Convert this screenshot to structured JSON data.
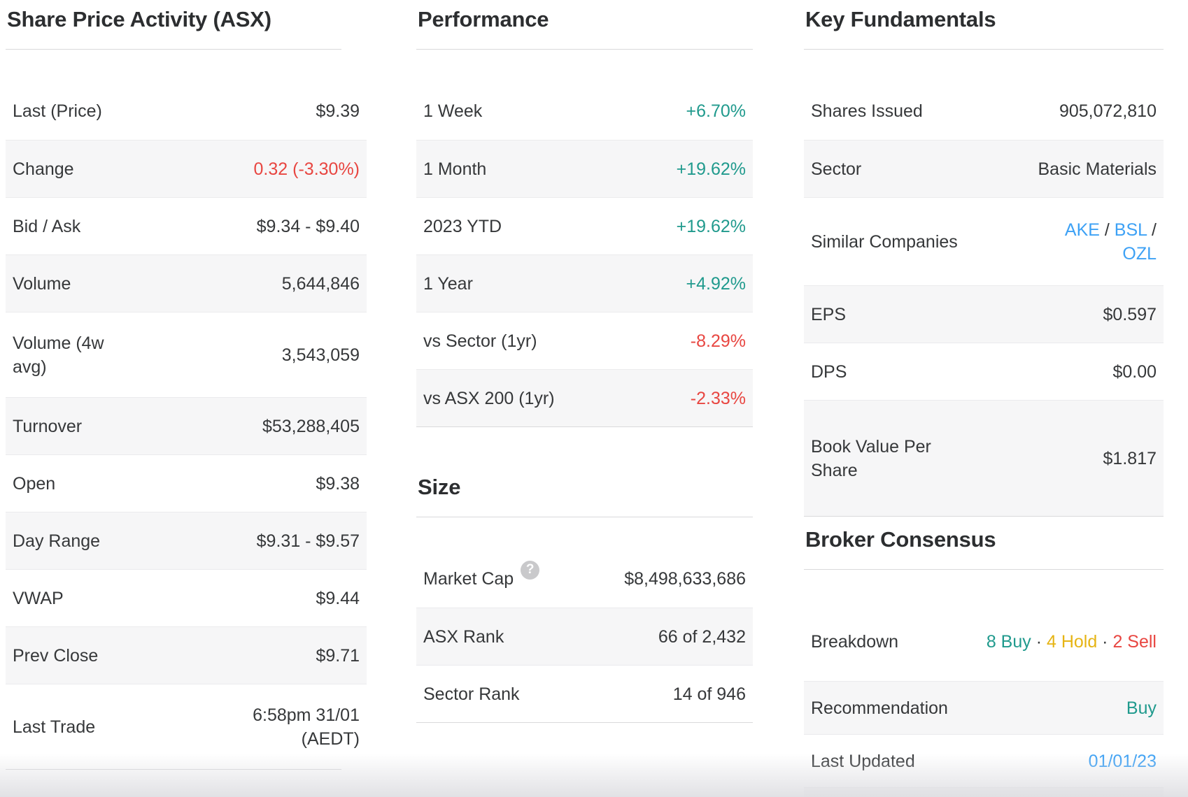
{
  "colors": {
    "positive_teal": "#209A8D",
    "negative_red": "#E84641",
    "hold_yellow": "#E6B414",
    "link_blue": "#3DA1F5",
    "row_stripe": "#F6F6F7",
    "heading_text": "#2C2E30"
  },
  "sections": {
    "share_price_activity": {
      "title": "Share Price Activity (ASX)",
      "rows": [
        {
          "label": "Last (Price)",
          "value": "$9.39"
        },
        {
          "label": "Change",
          "value": "0.32 (-3.30%)"
        },
        {
          "label": "Bid / Ask",
          "value": "$9.34 - $9.40"
        },
        {
          "label": "Volume",
          "value": "5,644,846"
        },
        {
          "label": "Volume (4w avg)",
          "value": "3,543,059"
        },
        {
          "label": "Turnover",
          "value": "$53,288,405"
        },
        {
          "label": "Open",
          "value": "$9.38"
        },
        {
          "label": "Day Range",
          "value": "$9.31 - $9.57"
        },
        {
          "label": "VWAP",
          "value": "$9.44"
        },
        {
          "label": "Prev Close",
          "value": "$9.71"
        },
        {
          "label": "Last Trade",
          "value": "6:58pm 31/01 (AEDT)"
        }
      ]
    },
    "performance": {
      "title": "Performance",
      "rows": [
        {
          "label": "1 Week",
          "value": "+6.70%"
        },
        {
          "label": "1 Month",
          "value": "+19.62%"
        },
        {
          "label": "2023 YTD",
          "value": "+19.62%"
        },
        {
          "label": "1 Year",
          "value": "+4.92%"
        },
        {
          "label": "vs Sector (1yr)",
          "value": "-8.29%"
        },
        {
          "label": "vs ASX 200 (1yr)",
          "value": "-2.33%"
        }
      ]
    },
    "size": {
      "title": "Size",
      "help_icon_glyph": "?",
      "rows": [
        {
          "label": "Market Cap",
          "value": "$8,498,633,686"
        },
        {
          "label": "ASX Rank",
          "value": "66 of 2,432"
        },
        {
          "label": "Sector Rank",
          "value": "14 of 946"
        }
      ]
    },
    "key_fundamentals": {
      "title": "Key Fundamentals",
      "rows": [
        {
          "label": "Shares Issued",
          "value": "905,072,810"
        },
        {
          "label": "Sector",
          "value": "Basic Materials"
        },
        {
          "label": "EPS",
          "value": "$0.597"
        },
        {
          "label": "DPS",
          "value": "$0.00"
        },
        {
          "label": "Book Value Per Share",
          "value": "$1.817"
        }
      ],
      "similar_companies_label": "Similar Companies",
      "similar_companies_segments": [
        {
          "text": "AKE",
          "type": "link",
          "name": "ticker-link-ake"
        },
        {
          "text": " / ",
          "type": "plain",
          "name": "separator"
        },
        {
          "text": "BSL",
          "type": "link",
          "name": "ticker-link-bsl"
        },
        {
          "text": " / ",
          "type": "plain",
          "name": "separator"
        },
        {
          "text": "OZL",
          "type": "link",
          "name": "ticker-link-ozl"
        }
      ]
    },
    "broker_consensus": {
      "title": "Broker Consensus",
      "breakdown_label": "Breakdown",
      "breakdown_segments": [
        {
          "text": "8 Buy",
          "type": "buy",
          "name": "buy-count"
        },
        {
          "text": " · ",
          "type": "plain",
          "name": "separator"
        },
        {
          "text": "4 Hold",
          "type": "hold",
          "name": "hold-count"
        },
        {
          "text": " · ",
          "type": "plain",
          "name": "separator"
        },
        {
          "text": "2 Sell",
          "type": "sell",
          "name": "sell-count"
        }
      ],
      "rows": [
        {
          "label": "Recommendation",
          "value": "Buy"
        },
        {
          "label": "Last Updated",
          "value": "01/01/23"
        }
      ]
    }
  }
}
